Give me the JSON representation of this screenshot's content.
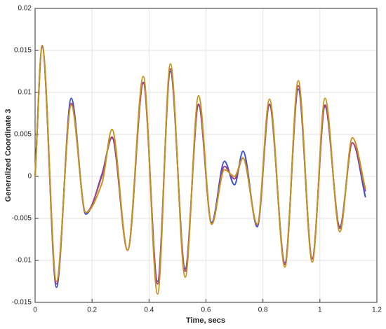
{
  "chart_data": {
    "type": "line",
    "xlabel": "Time, secs",
    "ylabel": "Generalized Coordinate 3",
    "x": [
      0,
      0.025,
      0.075,
      0.127,
      0.178,
      0.235,
      0.27,
      0.325,
      0.38,
      0.43,
      0.475,
      0.527,
      0.574,
      0.62,
      0.665,
      0.7,
      0.73,
      0.78,
      0.823,
      0.877,
      0.924,
      0.973,
      1.018,
      1.07,
      1.114,
      1.16
    ],
    "series": [
      {
        "color": "#3b4fd8",
        "values": [
          0,
          0.0154,
          -0.0132,
          0.0093,
          -0.0045,
          0.0003,
          0.0046,
          -0.0088,
          0.0112,
          -0.0125,
          0.0125,
          -0.011,
          0.0085,
          -0.0055,
          0.0018,
          -0.001,
          0.003,
          -0.006,
          0.0085,
          -0.0103,
          0.0104,
          -0.0098,
          0.0083,
          -0.006,
          0.004,
          -0.0025
        ]
      },
      {
        "color": "#a8437e",
        "values": [
          0,
          0.0155,
          -0.0128,
          0.0087,
          -0.0043,
          0.0001,
          0.0047,
          -0.0088,
          0.0111,
          -0.0128,
          0.0128,
          -0.0113,
          0.0086,
          -0.0057,
          0.0012,
          -0.0003,
          0.0022,
          -0.0058,
          0.0086,
          -0.0105,
          0.0108,
          -0.0098,
          0.0085,
          -0.0062,
          0.004,
          -0.0018
        ]
      },
      {
        "color": "#c8931a",
        "values": [
          0,
          0.0156,
          -0.0125,
          0.0085,
          -0.0043,
          -0.0008,
          0.0056,
          -0.0088,
          0.0119,
          -0.014,
          0.0134,
          -0.012,
          0.0096,
          -0.0057,
          0.0008,
          0,
          0.0022,
          -0.0057,
          0.0092,
          -0.0108,
          0.0114,
          -0.0102,
          0.0093,
          -0.0066,
          0.0046,
          -0.0015
        ]
      }
    ],
    "xlim": [
      0,
      1.2
    ],
    "xticks": [
      0,
      0.2,
      0.4,
      0.6,
      0.8,
      1,
      1.2
    ],
    "ylim": [
      -0.015,
      0.02
    ],
    "yticks": [
      -0.015,
      -0.01,
      -0.005,
      0,
      0.005,
      0.01,
      0.015,
      0.02
    ],
    "grid": true
  }
}
